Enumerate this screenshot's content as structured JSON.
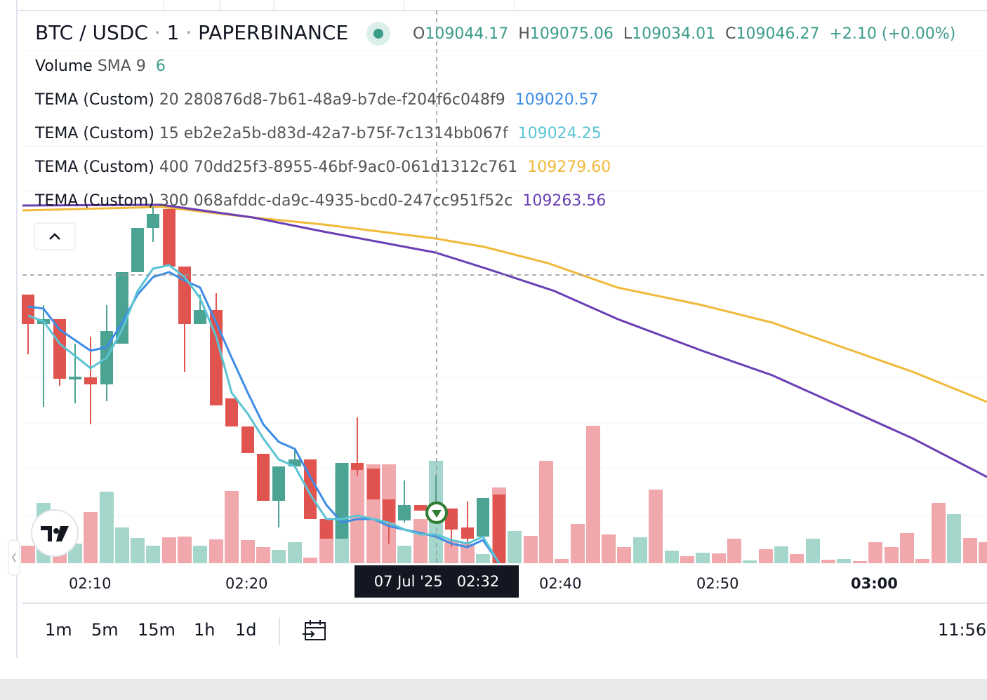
{
  "header": {
    "symbol": "BTC / USDC",
    "interval": "1",
    "exchange": "PAPERBINANCE",
    "ohlc": [
      {
        "key": "O",
        "value": "109044.17"
      },
      {
        "key": "H",
        "value": "109075.06"
      },
      {
        "key": "L",
        "value": "109034.01"
      },
      {
        "key": "C",
        "value": "109046.27"
      }
    ],
    "change": "+2.10 (+0.00%)"
  },
  "indicators": [
    {
      "name": "Volume",
      "params": "SMA 9",
      "value": "6"
    },
    {
      "name": "TEMA (Custom)",
      "params": "20 280876d8-7b61-48a9-b7de-f204f6c048f9",
      "value": "109020.57"
    },
    {
      "name": "TEMA (Custom)",
      "params": "15 eb2e2a5b-d83d-42a7-b75f-7c1314bb067f",
      "value": "109024.25"
    },
    {
      "name": "TEMA (Custom)",
      "params": "400 70dd25f3-8955-46bf-9ac0-061d1312c761",
      "value": "109279.60"
    },
    {
      "name": "TEMA (Custom)",
      "params": "300 068afddc-da9c-4935-bcd0-247cc951f52c",
      "value": "109263.56"
    }
  ],
  "time_axis": [
    "02:10",
    "02:20",
    "02:40",
    "02:50",
    "03:00"
  ],
  "crosshair": {
    "date": "07 Jul '25",
    "time": "02:32"
  },
  "timeframes": [
    "1m",
    "5m",
    "15m",
    "1h",
    "1d"
  ],
  "clock": "11:56"
}
